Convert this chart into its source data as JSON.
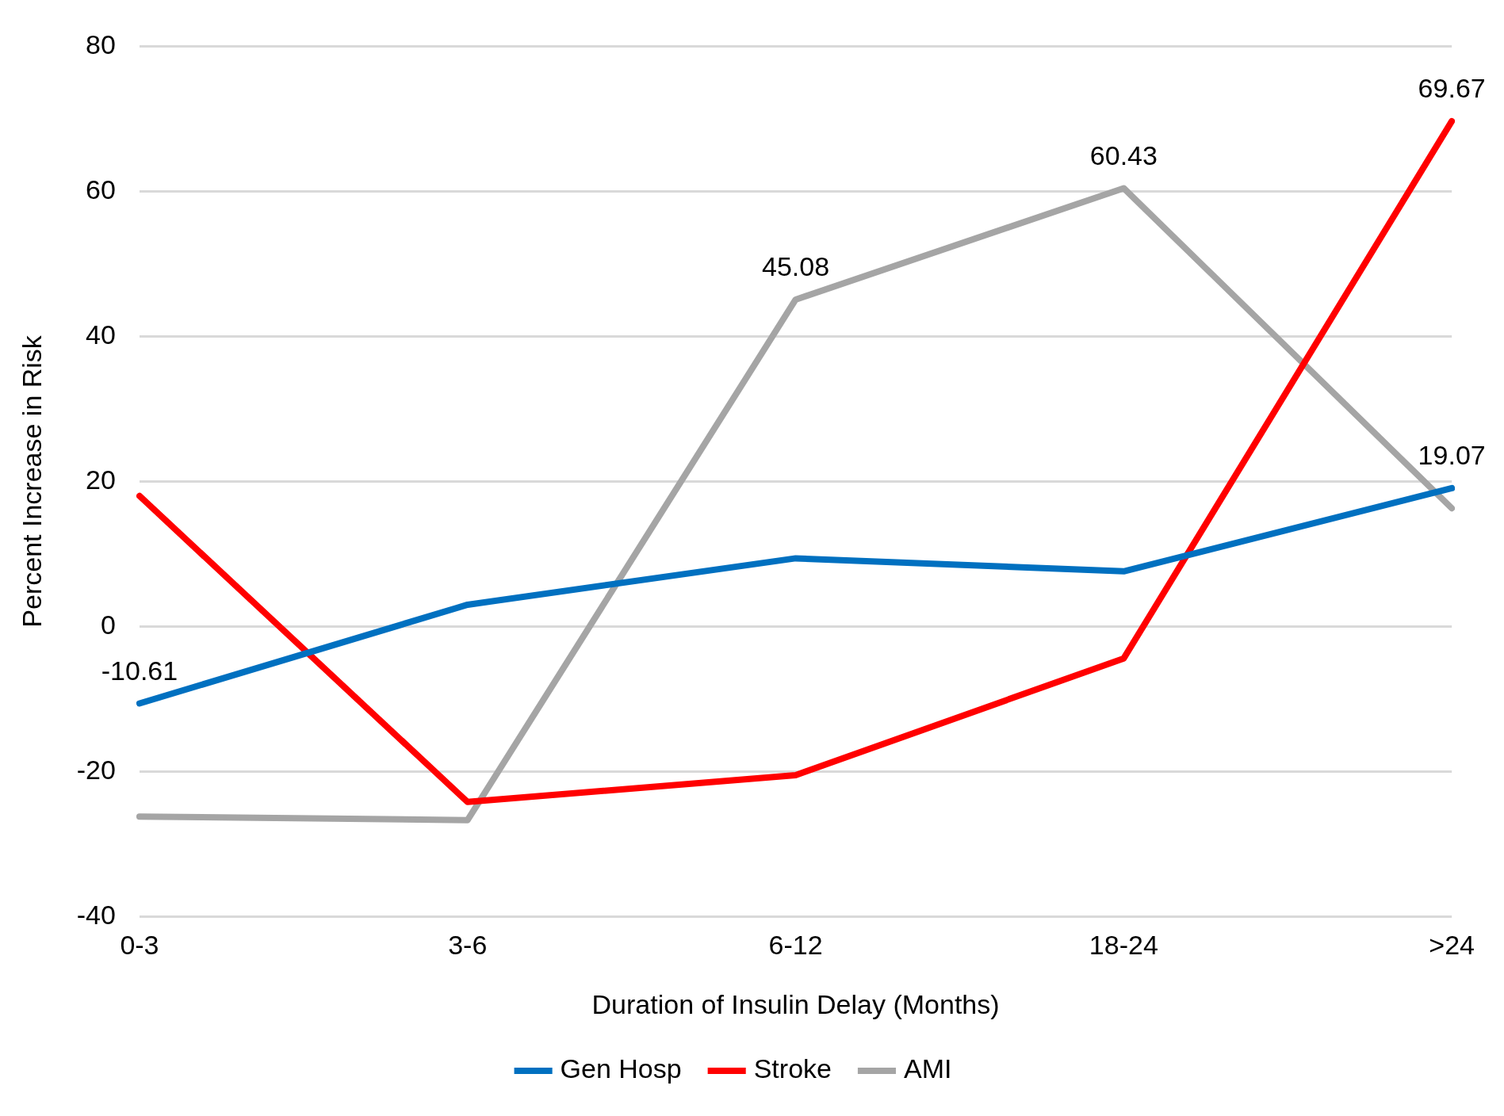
{
  "chart_data": {
    "type": "line",
    "xlabel": "Duration of Insulin Delay (Months)",
    "ylabel": "Percent Increase in Risk",
    "categories": [
      "0-3",
      "3-6",
      "6-12",
      "18-24",
      ">24"
    ],
    "series": [
      {
        "name": "Gen Hosp",
        "color": "#0070c0",
        "values": [
          -10.61,
          3,
          9.4,
          7.6,
          19.07
        ],
        "value_labels": [
          "-10.61",
          null,
          null,
          null,
          "19.07"
        ]
      },
      {
        "name": "Stroke",
        "color": "#ff0000",
        "values": [
          18,
          -24.2,
          -20.5,
          -4.4,
          69.67
        ],
        "value_labels": [
          null,
          null,
          null,
          null,
          "69.67"
        ]
      },
      {
        "name": "AMI",
        "color": "#a5a5a5",
        "values": [
          -26.2,
          -26.7,
          45.08,
          60.43,
          16.3
        ],
        "value_labels": [
          null,
          null,
          "45.08",
          "60.43",
          null
        ]
      }
    ],
    "ylim": [
      -40,
      80
    ],
    "yticks": [
      -40,
      -20,
      0,
      20,
      40,
      60,
      80
    ],
    "grid": "y",
    "legend": "bottom",
    "marker": "none",
    "line_style": "solid"
  }
}
